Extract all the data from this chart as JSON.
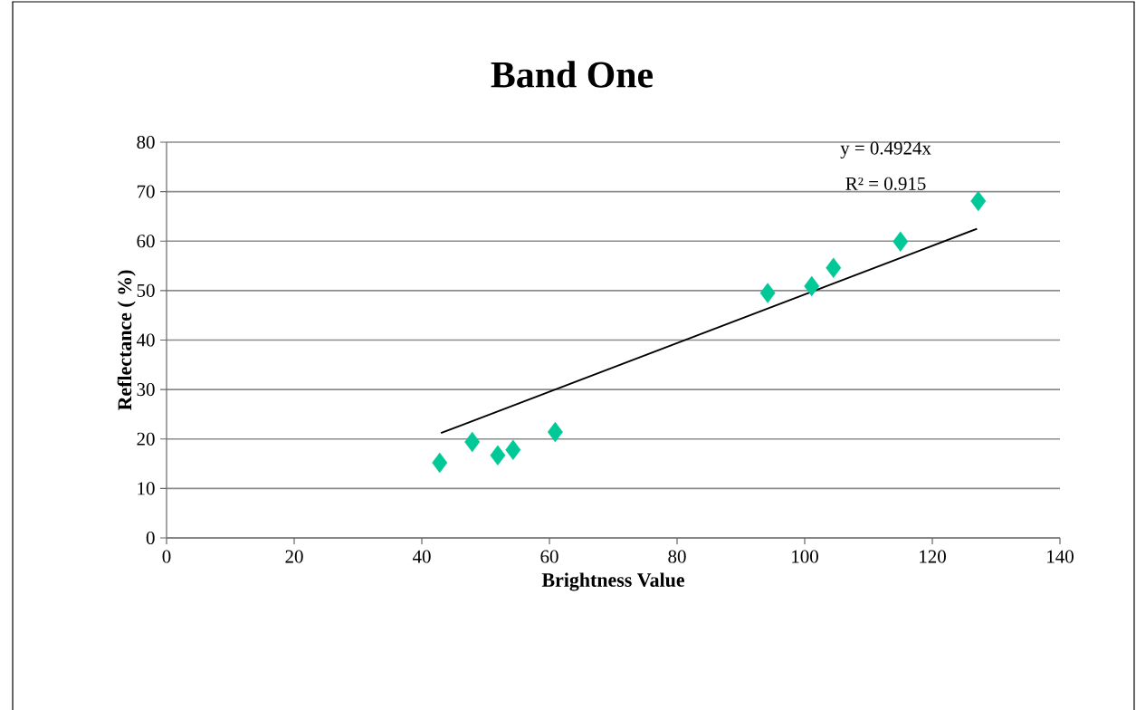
{
  "chart_data": {
    "type": "scatter",
    "title": "Band One",
    "xlabel": "Brightness Value",
    "ylabel": "Reflectance ( %)",
    "annotations": [
      "y = 0.4924x",
      "R² = 0.915"
    ],
    "series": [
      {
        "color": "#00c896",
        "marker": "diamond",
        "x": [
          42.8,
          47.9,
          51.9,
          54.3,
          60.9,
          94.2,
          101.1,
          104.5,
          115.0,
          127.2
        ],
        "values": [
          15.2,
          19.4,
          16.7,
          17.8,
          21.4,
          49.5,
          50.9,
          54.6,
          59.9,
          68.1
        ]
      },
      {
        "type": "line",
        "color": "#000000",
        "marker": "none",
        "line_style": "solid",
        "x": [
          43,
          127
        ],
        "values": [
          21.2,
          62.5
        ]
      }
    ],
    "xlim": [
      0,
      140
    ],
    "ylim": [
      0,
      80
    ],
    "xticks": [
      0,
      20,
      40,
      60,
      80,
      100,
      120,
      140
    ],
    "yticks": [
      0,
      10,
      20,
      30,
      40,
      50,
      60,
      70,
      80
    ],
    "grid": "y"
  }
}
